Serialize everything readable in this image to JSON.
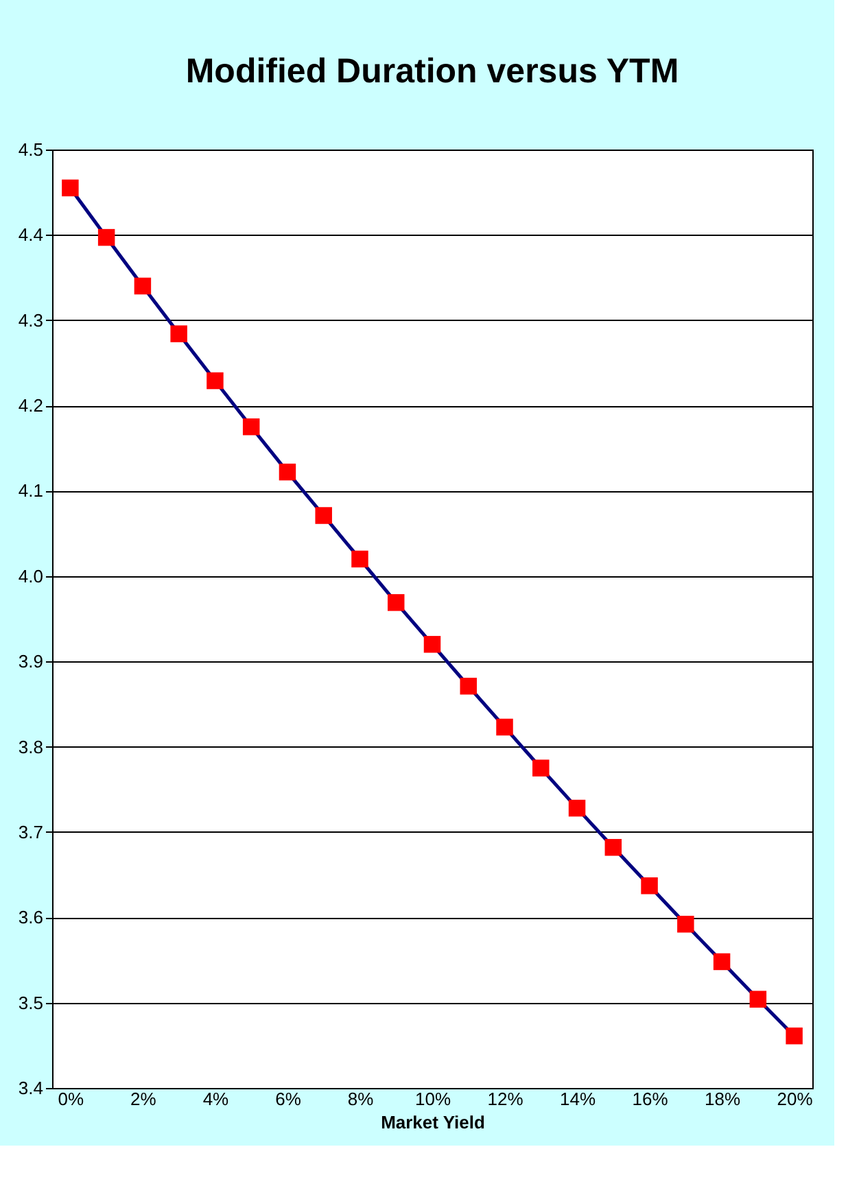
{
  "chart_data": {
    "type": "line",
    "title": "Modified Duration versus YTM",
    "xlabel": "Market Yield",
    "x": [
      0,
      1,
      2,
      3,
      4,
      5,
      6,
      7,
      8,
      9,
      10,
      11,
      12,
      13,
      14,
      15,
      16,
      17,
      18,
      19,
      20
    ],
    "series": [
      {
        "color": "#000080",
        "colors": [
          "#ff0000",
          "#ff0000",
          "#ff0000",
          "#ff0000",
          "#ff0000",
          "#ff0000",
          "#ff0000",
          "#ff0000",
          "#ff0000",
          "#ff0000",
          "#ff0000",
          "#ff0000",
          "#ff0000",
          "#ff0000",
          "#ff0000",
          "#ff0000",
          "#ff0000",
          "#ff0000",
          "#ff0000",
          "#ff0000",
          "#ff0000"
        ],
        "values": [
          4.455,
          4.397,
          4.34,
          4.284,
          4.229,
          4.175,
          4.122,
          4.071,
          4.02,
          3.969,
          3.92,
          3.871,
          3.823,
          3.775,
          3.728,
          3.682,
          3.637,
          3.592,
          3.548,
          3.504,
          3.461
        ]
      }
    ],
    "xlim": [
      -0.5,
      20.5
    ],
    "xticks": [
      {
        "value": 0,
        "label": "0%"
      },
      {
        "value": 2,
        "label": "2%"
      },
      {
        "value": 4,
        "label": "4%"
      },
      {
        "value": 6,
        "label": "6%"
      },
      {
        "value": 8,
        "label": "8%"
      },
      {
        "value": 10,
        "label": "10%"
      },
      {
        "value": 12,
        "label": "12%"
      },
      {
        "value": 14,
        "label": "14%"
      },
      {
        "value": 16,
        "label": "16%"
      },
      {
        "value": 18,
        "label": "18%"
      },
      {
        "value": 20,
        "label": "20%"
      }
    ],
    "ylim": [
      3.4,
      4.5
    ],
    "yticks": [
      3.4,
      3.5,
      3.6,
      3.7,
      3.8,
      3.9,
      {
        "value": 4.0,
        "label": "4.0"
      },
      4.1,
      4.2,
      4.3,
      4.4,
      4.5
    ],
    "grid": "y",
    "marker": "square",
    "line_style": "solid"
  }
}
